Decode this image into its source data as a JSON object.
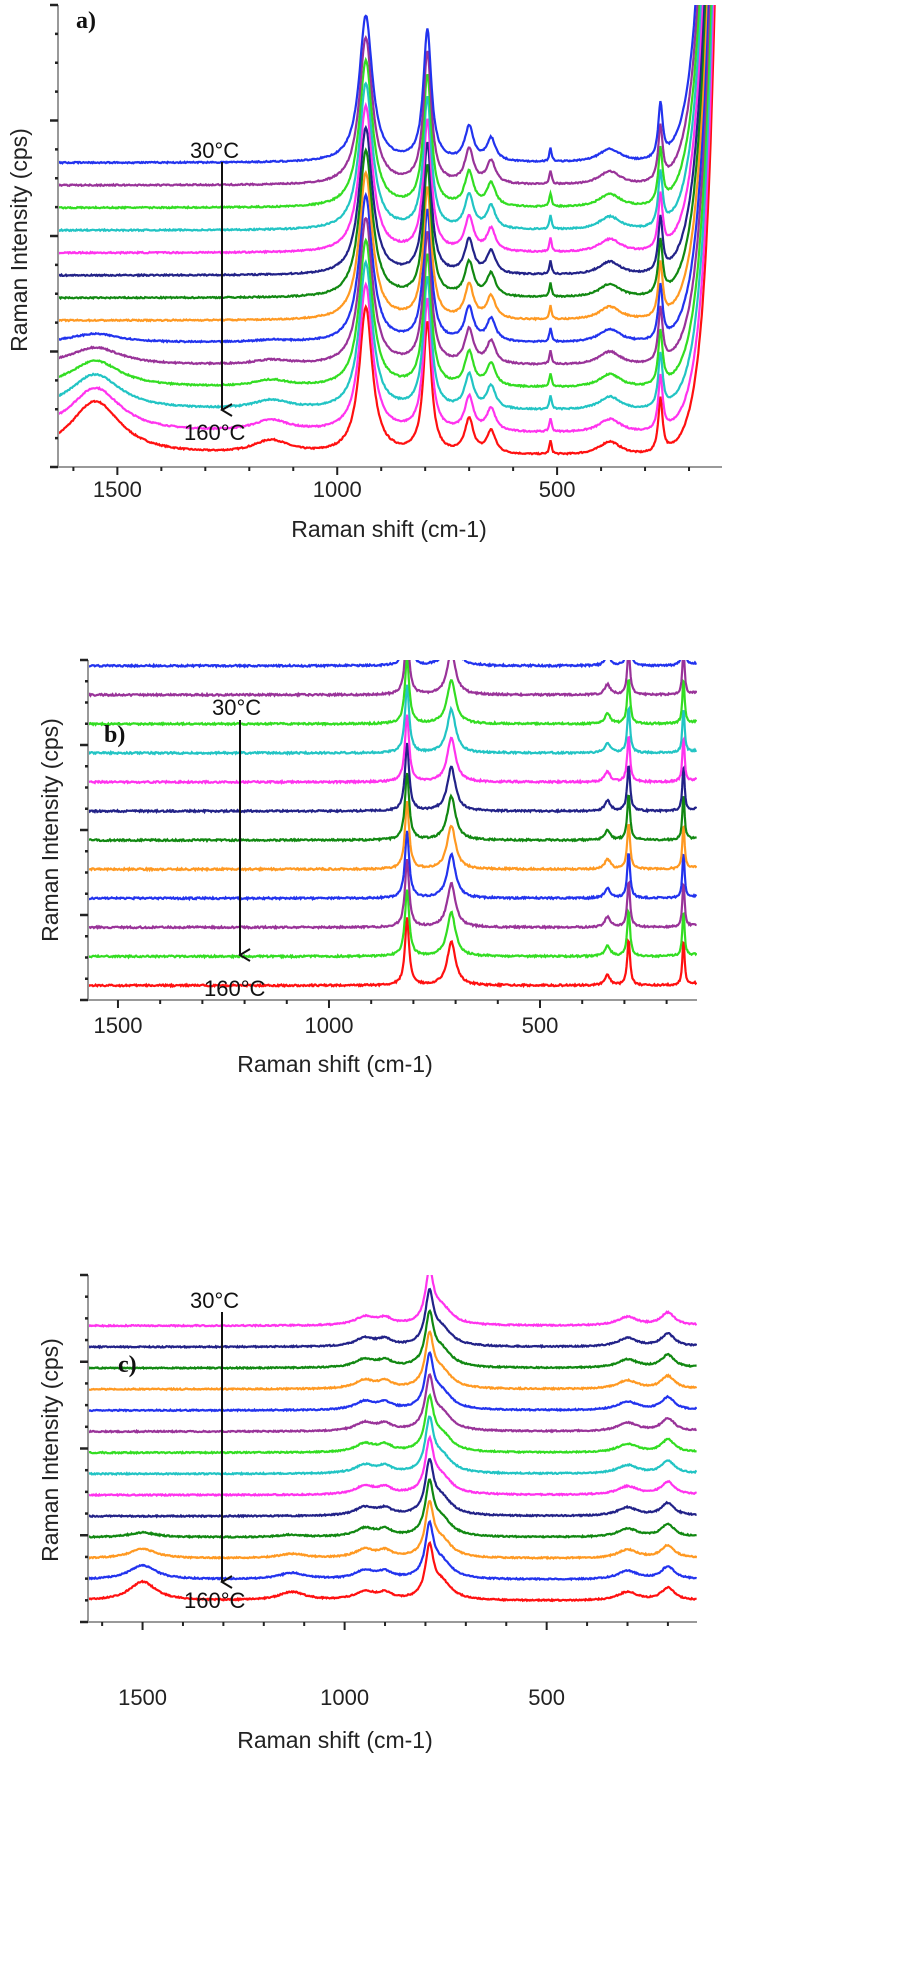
{
  "chart_data": [
    {
      "type": "line",
      "panel_label": "a)",
      "xlabel": "Raman shift (cm-1)",
      "ylabel": "Raman Intensity (cps)",
      "xlim": [
        1635,
        125
      ],
      "x_reversed": true,
      "xticks": [
        1500,
        1000,
        500
      ],
      "ylim": [
        -0.5,
        20
      ],
      "y_units": "arbitrary (stacked, 1 unit = offset between spectra)",
      "series_count": 14,
      "series_colors_bottom_to_top": [
        "#ff1010",
        "#ff33ee",
        "#22c4c4",
        "#33dd22",
        "#993399",
        "#2233ee",
        "#ff9922",
        "#118811",
        "#222288",
        "#ff33ee",
        "#22c4c4",
        "#33dd22",
        "#993399",
        "#2233ee"
      ],
      "peaks": [
        [
          935,
          6.5,
          18
        ],
        [
          795,
          5.8,
          11
        ],
        [
          700,
          1.5,
          12
        ],
        [
          650,
          1.0,
          12
        ],
        [
          515,
          0.6,
          3
        ],
        [
          380,
          0.6,
          30
        ],
        [
          265,
          2.4,
          6
        ]
      ],
      "low_temperature_bands": [
        [
          1550,
          2.4,
          70
        ],
        [
          1150,
          0.6,
          50
        ]
      ],
      "low_temperature_fade_series": 6,
      "rising_edge_below": 200,
      "annotations": {
        "top": "30°C",
        "bottom": "160°C"
      }
    },
    {
      "type": "line",
      "panel_label": "b)",
      "xlabel": "Raman shift (cm-1)",
      "ylabel": "Raman Intensity (cps)",
      "xlim": [
        1571,
        128
      ],
      "x_reversed": true,
      "xticks": [
        1500,
        1000,
        500
      ],
      "ylim": [
        -0.5,
        11.2
      ],
      "y_units": "arbitrary (stacked, 1 unit = offset between spectra)",
      "series_count": 15,
      "series_colors_bottom_to_top": [
        "#ff1010",
        "#33dd22",
        "#993399",
        "#2233ee",
        "#ff9922",
        "#118811",
        "#222288",
        "#ff33ee",
        "#22c4c4",
        "#33dd22",
        "#993399",
        "#2233ee",
        "#ff9922",
        "#118811",
        "#ff9922"
      ],
      "peaks": [
        [
          815,
          2.3,
          6
        ],
        [
          710,
          1.5,
          12
        ],
        [
          340,
          0.35,
          8
        ],
        [
          290,
          1.6,
          4
        ],
        [
          160,
          1.6,
          3
        ],
        [
          100,
          2.2,
          6
        ]
      ],
      "low_temperature_bands": [],
      "low_temperature_fade_series": 1,
      "annotations": {
        "top": "30°C",
        "bottom": "160°C"
      }
    },
    {
      "type": "line",
      "panel_label": "c)",
      "xlabel": "Raman shift (cm-1)",
      "ylabel": "Raman Intensity (cps)",
      "xlim": [
        1635,
        128
      ],
      "x_reversed": true,
      "xticks": [
        1500,
        1000,
        500
      ],
      "ylim": [
        -1,
        15.4
      ],
      "y_units": "arbitrary (stacked, 1 unit = offset between spectra)",
      "series_count": 14,
      "series_colors_bottom_to_top": [
        "#ff1010",
        "#2233ee",
        "#ff9922",
        "#118811",
        "#222288",
        "#ff33ee",
        "#22c4c4",
        "#33dd22",
        "#993399",
        "#2233ee",
        "#ff9922",
        "#118811",
        "#222288",
        "#ff33ee"
      ],
      "peaks": [
        [
          790,
          2.3,
          12
        ],
        [
          760,
          0.8,
          30
        ],
        [
          950,
          0.4,
          30
        ],
        [
          900,
          0.3,
          20
        ],
        [
          300,
          0.4,
          30
        ],
        [
          200,
          0.6,
          20
        ],
        [
          105,
          0.8,
          5
        ]
      ],
      "low_temperature_bands": [
        [
          1500,
          0.9,
          40
        ],
        [
          1130,
          0.4,
          40
        ]
      ],
      "low_temperature_fade_series": 4,
      "annotations": {
        "top": "30°C",
        "bottom": "160°C"
      }
    }
  ]
}
